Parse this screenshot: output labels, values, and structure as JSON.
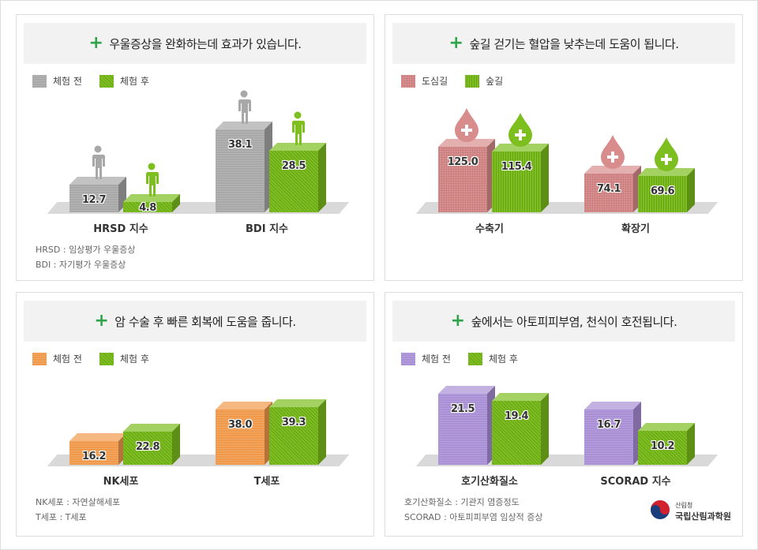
{
  "colors": {
    "accent": "#2ea44a",
    "gray": "#a8a8a8",
    "green": "#7cbf1f",
    "pink": "#d98c8c",
    "orange": "#f0994a",
    "purple": "#a98fd6"
  },
  "chart_data": [
    {
      "type": "bar",
      "title": "우울증상을 완화하는데 효과가 있습니다.",
      "legend": [
        "체험 전",
        "체험 후"
      ],
      "categories": [
        "HRSD 지수",
        "BDI 지수"
      ],
      "series": [
        {
          "name": "체험 전",
          "values": [
            12.7,
            38.1
          ],
          "color": "#a8a8a8",
          "pattern": "hstripe",
          "icon": "person-icon"
        },
        {
          "name": "체험 후",
          "values": [
            4.8,
            28.5
          ],
          "color": "#7cbf1f",
          "pattern": "diag",
          "icon": "person-icon"
        }
      ],
      "notes": [
        "HRSD : 임상평가 우울증상",
        "BDI : 자기평가 우울증상"
      ]
    },
    {
      "type": "bar",
      "title": "숲길 걷기는 혈압을 낮추는데 도움이 됩니다.",
      "legend": [
        "도심길",
        "숲길"
      ],
      "categories": [
        "수축기",
        "확장기"
      ],
      "series": [
        {
          "name": "도심길",
          "values": [
            125.0,
            74.1
          ],
          "color": "#d98c8c",
          "pattern": "dots",
          "icon": "blood-drop-icon"
        },
        {
          "name": "숲길",
          "values": [
            115.4,
            69.6
          ],
          "color": "#7cbf1f",
          "pattern": "vstripe",
          "icon": "blood-drop-icon"
        }
      ],
      "notes": []
    },
    {
      "type": "bar",
      "title": "암 수술 후 빠른 회복에 도움을 줍니다.",
      "legend": [
        "체험 전",
        "체험 후"
      ],
      "categories": [
        "NK세포",
        "T세포"
      ],
      "series": [
        {
          "name": "체험 전",
          "values": [
            16.2,
            38.0
          ],
          "color": "#f0994a",
          "pattern": "hstripe"
        },
        {
          "name": "체험 후",
          "values": [
            22.8,
            39.3
          ],
          "color": "#7cbf1f",
          "pattern": "diag"
        }
      ],
      "notes": [
        "NK세포 : 자연살해세포",
        "T세포 : T세포"
      ]
    },
    {
      "type": "bar",
      "title": "숲에서는 아토피피부염, 천식이 호전됩니다.",
      "legend": [
        "체험 전",
        "체험 후"
      ],
      "categories": [
        "호기산화질소",
        "SCORAD 지수"
      ],
      "series": [
        {
          "name": "체험 전",
          "values": [
            21.5,
            16.7
          ],
          "color": "#a98fd6",
          "pattern": "hstripe"
        },
        {
          "name": "체험 후",
          "values": [
            19.4,
            10.2
          ],
          "color": "#7cbf1f",
          "pattern": "diag"
        }
      ],
      "notes": [
        "호기산화질소 : 기관지 염증정도",
        "SCORAD : 아토피피부염 임상적 증상"
      ]
    }
  ],
  "logo": {
    "line1": "산림청",
    "line2": "국립산림과학원"
  }
}
